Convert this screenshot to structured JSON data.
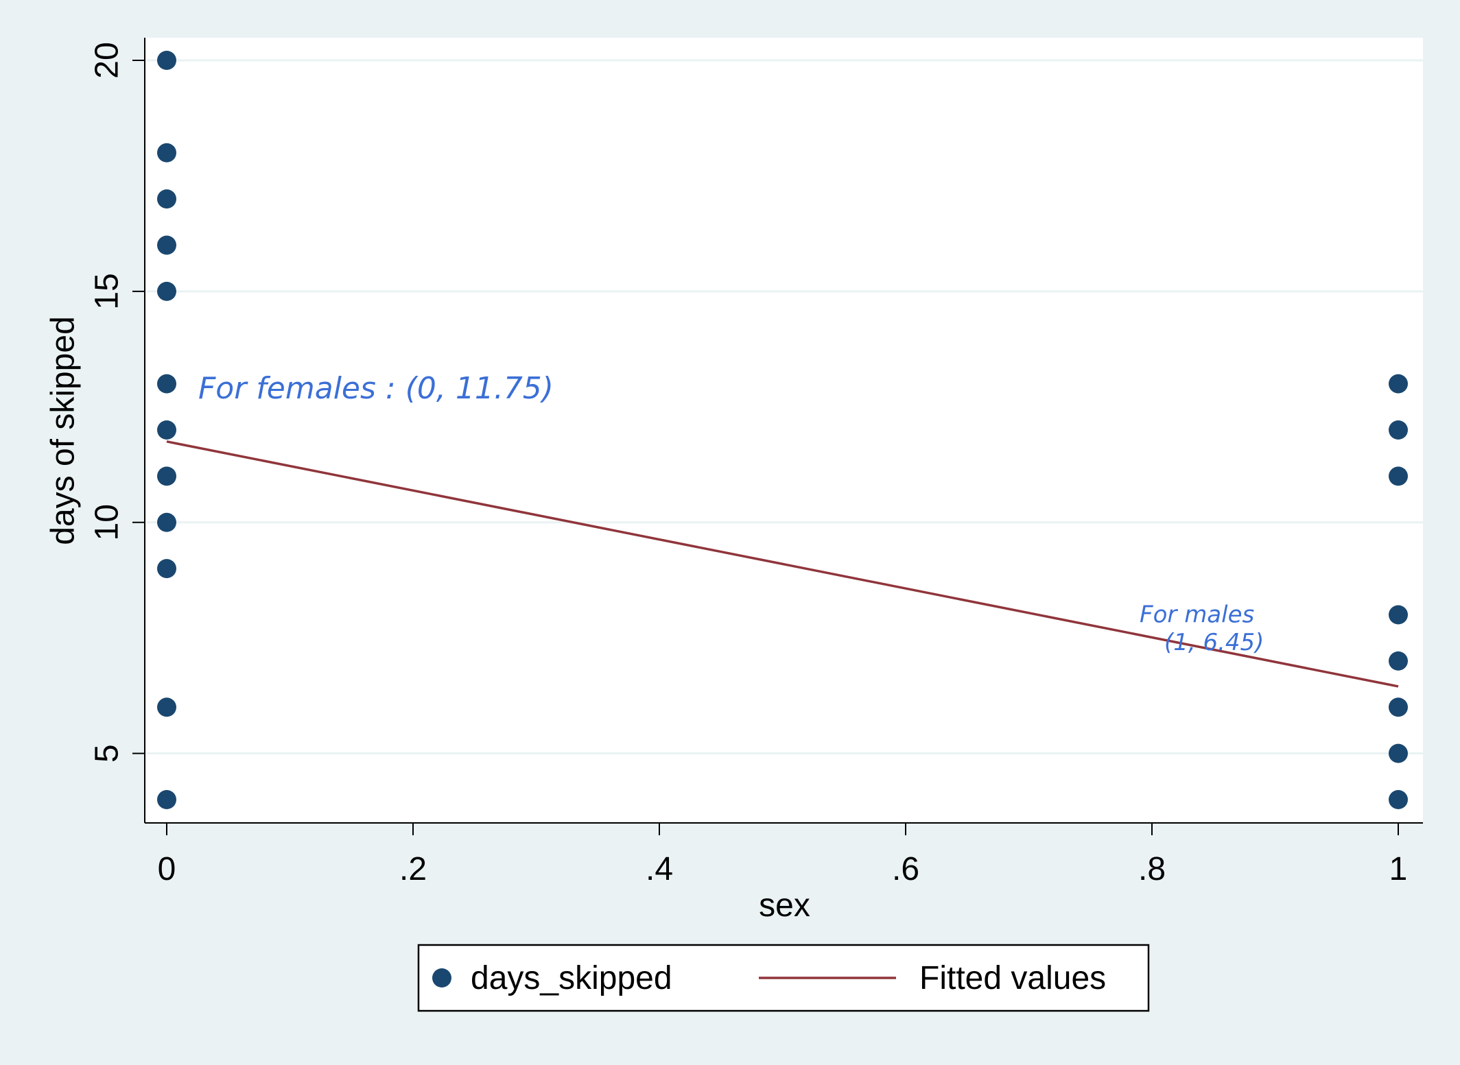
{
  "chart_data": {
    "type": "scatter",
    "xlabel": "sex",
    "ylabel": "days of skipped",
    "xlim": [
      0,
      1
    ],
    "ylim": [
      3.5,
      20.5
    ],
    "x_ticks": [
      0,
      0.2,
      0.4,
      0.6,
      0.8,
      1
    ],
    "x_tick_labels": [
      "0",
      ".2",
      ".4",
      ".6",
      ".8",
      "1"
    ],
    "y_ticks": [
      5,
      10,
      15,
      20
    ],
    "y_tick_labels": [
      "5",
      "10",
      "15",
      "20"
    ],
    "grid": "horizontal",
    "series": [
      {
        "name": "days_skipped",
        "kind": "scatter",
        "color": "#1a476f",
        "points": [
          {
            "x": 0,
            "y": 20
          },
          {
            "x": 0,
            "y": 18
          },
          {
            "x": 0,
            "y": 17
          },
          {
            "x": 0,
            "y": 16
          },
          {
            "x": 0,
            "y": 15
          },
          {
            "x": 0,
            "y": 13
          },
          {
            "x": 0,
            "y": 12
          },
          {
            "x": 0,
            "y": 11
          },
          {
            "x": 0,
            "y": 10
          },
          {
            "x": 0,
            "y": 9
          },
          {
            "x": 0,
            "y": 6
          },
          {
            "x": 0,
            "y": 4
          },
          {
            "x": 1,
            "y": 13
          },
          {
            "x": 1,
            "y": 12
          },
          {
            "x": 1,
            "y": 11
          },
          {
            "x": 1,
            "y": 8
          },
          {
            "x": 1,
            "y": 7
          },
          {
            "x": 1,
            "y": 6
          },
          {
            "x": 1,
            "y": 5
          },
          {
            "x": 1,
            "y": 4
          }
        ]
      },
      {
        "name": "Fitted values",
        "kind": "line",
        "color": "#90353b",
        "points": [
          {
            "x": 0,
            "y": 11.75
          },
          {
            "x": 1,
            "y": 6.45
          }
        ]
      }
    ],
    "legend": {
      "position": "bottom-center",
      "items": [
        {
          "label": "days_skipped",
          "marker": "dot",
          "color": "#1a476f"
        },
        {
          "label": "Fitted values",
          "marker": "line",
          "color": "#90353b"
        }
      ]
    },
    "annotations": [
      {
        "text": "For females : (0, 11.75)",
        "x": 0.0,
        "y": 12.9,
        "color": "#3b6fd6",
        "style": "handwritten"
      },
      {
        "text": "For males",
        "x": 0.79,
        "y": 8.0,
        "color": "#3b6fd6",
        "style": "handwritten"
      },
      {
        "text": "(1, 6.45)",
        "x": 0.81,
        "y": 7.4,
        "color": "#3b6fd6",
        "style": "handwritten"
      }
    ],
    "colors": {
      "background": "#eaf2f3",
      "plot_background": "#ffffff",
      "gridline": "#eaf2f3",
      "axis": "#000000"
    }
  }
}
